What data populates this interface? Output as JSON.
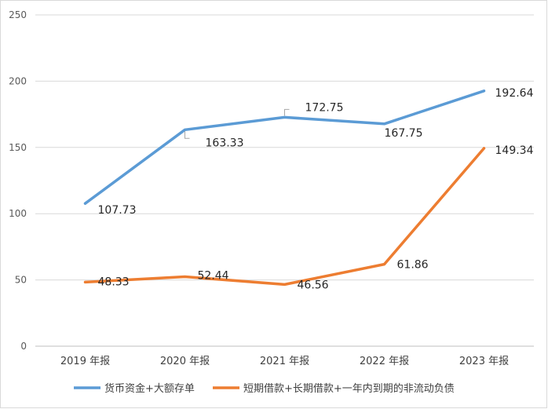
{
  "chart_data": {
    "type": "line",
    "categories": [
      "2019 年报",
      "2020 年报",
      "2021 年报",
      "2022 年报",
      "2023 年报"
    ],
    "series": [
      {
        "name": "货币资金+大额存单",
        "values": [
          107.73,
          163.33,
          172.75,
          167.75,
          192.64
        ],
        "color": "#5B9BD5"
      },
      {
        "name": "短期借款+长期借款+一年内到期的非流动负债",
        "values": [
          48.33,
          52.44,
          46.56,
          61.86,
          149.34
        ],
        "color": "#ED7D31"
      }
    ],
    "ylim": [
      0,
      250
    ],
    "yticks": [
      0,
      50,
      100,
      150,
      200,
      250
    ],
    "grid": true,
    "legend_position": "bottom",
    "data_labels": true
  }
}
